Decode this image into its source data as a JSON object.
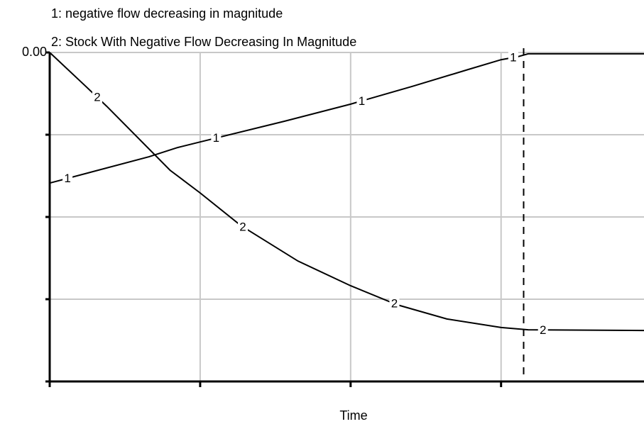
{
  "chart_data": {
    "type": "line",
    "xlabel": "Time",
    "xlim": [
      0,
      3.95
    ],
    "ylim": [
      -100,
      0
    ],
    "yticks": [
      {
        "value": 0,
        "label": "0.00"
      }
    ],
    "ygrid": [
      0,
      -25,
      -50,
      -75,
      -100
    ],
    "xgrid": [
      0,
      1,
      2,
      3
    ],
    "grid": true,
    "cursor_x": 3.15,
    "series": [
      {
        "name": "1: negative flow decreasing in magnitude",
        "label": "1",
        "color": "#000000",
        "x": [
          0,
          0.66,
          0.85,
          1,
          1.56,
          2,
          2.41,
          2.78,
          3,
          3.11,
          3.18,
          3.95
        ],
        "values": [
          -39.7,
          -31.7,
          -28.9,
          -27.2,
          -20.9,
          -15.7,
          -10.3,
          -5.2,
          -2.2,
          -1.3,
          -0.4,
          -0.4
        ]
      },
      {
        "name": "2: Stock With Negative Flow Decreasing In Magnitude",
        "label": "2",
        "color": "#000000",
        "x": [
          0,
          0.24,
          0.38,
          0.8,
          1,
          1.27,
          1.65,
          2,
          2.31,
          2.64,
          3,
          3.18,
          3.95
        ],
        "values": [
          0,
          -10.3,
          -16.4,
          -35.8,
          -42.7,
          -52.6,
          -63.4,
          -70.9,
          -76.7,
          -81,
          -83.6,
          -84.3,
          -84.5
        ]
      }
    ]
  }
}
